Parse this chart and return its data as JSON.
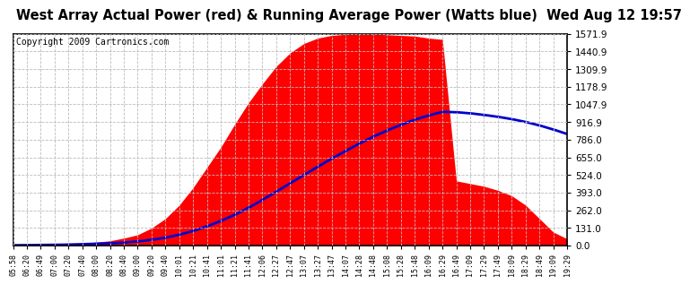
{
  "title": "West Array Actual Power (red) & Running Average Power (Watts blue)  Wed Aug 12 19:57",
  "copyright": "Copyright 2009 Cartronics.com",
  "ymin": 0.0,
  "ymax": 1571.9,
  "yticks": [
    0.0,
    131.0,
    262.0,
    393.0,
    524.0,
    655.0,
    786.0,
    916.9,
    1047.9,
    1178.9,
    1309.9,
    1440.9,
    1571.9
  ],
  "ytick_labels": [
    "0.0",
    "131.0",
    "262.0",
    "393.0",
    "524.0",
    "655.0",
    "786.0",
    "916.9",
    "1047.9",
    "1178.9",
    "1309.9",
    "1440.9",
    "1571.9"
  ],
  "xtick_labels": [
    "05:58",
    "06:20",
    "06:49",
    "07:00",
    "07:20",
    "07:40",
    "08:00",
    "08:20",
    "08:40",
    "09:00",
    "09:20",
    "09:40",
    "10:01",
    "10:21",
    "10:41",
    "11:01",
    "11:21",
    "11:41",
    "12:06",
    "12:27",
    "12:47",
    "13:07",
    "13:27",
    "13:47",
    "14:07",
    "14:28",
    "14:48",
    "15:08",
    "15:28",
    "15:48",
    "16:09",
    "16:29",
    "16:49",
    "17:09",
    "17:29",
    "17:49",
    "18:09",
    "18:29",
    "18:49",
    "19:09",
    "19:29"
  ],
  "bg_color": "#ffffff",
  "plot_bg_color": "#ffffff",
  "grid_color": "#bbbbbb",
  "actual_color": "#ff0000",
  "average_color": "#0000cc",
  "title_fontsize": 10.5,
  "copyright_fontsize": 7,
  "actual_power": [
    2,
    4,
    6,
    8,
    12,
    18,
    25,
    35,
    55,
    80,
    130,
    200,
    300,
    430,
    580,
    730,
    900,
    1060,
    1200,
    1330,
    1430,
    1500,
    1540,
    1560,
    1568,
    1571,
    1570,
    1565,
    1560,
    1555,
    1540,
    1530,
    480,
    460,
    440,
    410,
    370,
    300,
    200,
    100,
    50
  ],
  "avg_power": [
    2,
    3,
    4,
    5,
    7,
    10,
    13,
    17,
    22,
    30,
    42,
    58,
    80,
    108,
    142,
    182,
    228,
    280,
    338,
    400,
    462,
    524,
    585,
    645,
    702,
    757,
    808,
    854,
    896,
    934,
    966,
    993,
    990,
    982,
    970,
    956,
    939,
    918,
    892,
    862,
    828
  ]
}
